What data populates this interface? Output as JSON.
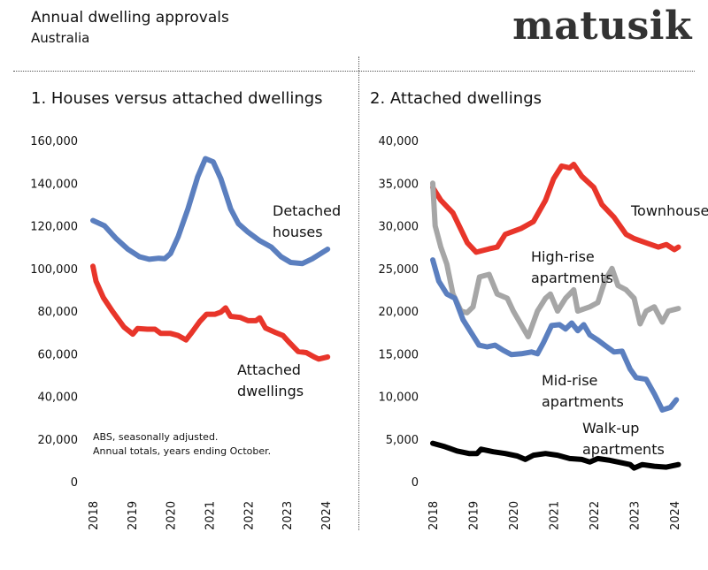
{
  "header": {
    "title": "Annual dwelling approvals",
    "subtitle": "Australia",
    "logo": "matusik"
  },
  "note": {
    "line1": "ABS, seasonally adjusted.",
    "line2": "Annual totals, years ending October."
  },
  "chart_data": [
    {
      "type": "line",
      "title": "1. Houses versus attached dwellings",
      "xlim": [
        2018,
        2024
      ],
      "ylim": [
        0,
        160000
      ],
      "x_ticks": [
        "2018",
        "2019",
        "2020",
        "2021",
        "2022",
        "2023",
        "2024"
      ],
      "y_ticks": [
        "0",
        "20,000",
        "40,000",
        "60,000",
        "80,000",
        "100,000",
        "120,000",
        "140,000",
        "160,000"
      ],
      "grid": false,
      "series": [
        {
          "name": "Detached houses",
          "label_lines": [
            "Detached",
            "houses"
          ],
          "color": "#5b7fbf",
          "x": [
            2018.0,
            2018.3,
            2018.6,
            2018.9,
            2019.2,
            2019.45,
            2019.7,
            2019.85,
            2020.0,
            2020.2,
            2020.45,
            2020.7,
            2020.9,
            2021.1,
            2021.3,
            2021.55,
            2021.75,
            2022.0,
            2022.3,
            2022.6,
            2022.85,
            2023.1,
            2023.4,
            2023.65,
            2024.05
          ],
          "y": [
            122500,
            120000,
            114000,
            109000,
            105500,
            104300,
            104800,
            104600,
            107000,
            115000,
            128000,
            143000,
            151500,
            150000,
            142000,
            128000,
            121000,
            117000,
            113000,
            110000,
            105500,
            102800,
            102300,
            104500,
            109000
          ]
        },
        {
          "name": "Attached dwellings",
          "label_lines": [
            "Attached",
            "dwellings"
          ],
          "color": "#e8352a",
          "x": [
            2018.0,
            2018.08,
            2018.27,
            2018.5,
            2018.8,
            2019.03,
            2019.15,
            2019.4,
            2019.6,
            2019.75,
            2020.0,
            2020.2,
            2020.4,
            2020.55,
            2020.75,
            2020.93,
            2021.15,
            2021.3,
            2021.42,
            2021.55,
            2021.8,
            2022.0,
            2022.2,
            2022.3,
            2022.45,
            2022.7,
            2022.9,
            2023.05,
            2023.29,
            2023.5,
            2023.7,
            2023.82,
            2024.05
          ],
          "y": [
            101000,
            94000,
            86300,
            80000,
            72500,
            69200,
            71800,
            71500,
            71500,
            69500,
            69500,
            68500,
            66500,
            70000,
            75000,
            78500,
            78500,
            79500,
            81500,
            77500,
            77000,
            75500,
            75500,
            76800,
            72000,
            70000,
            68500,
            65500,
            61000,
            60500,
            58500,
            57500,
            58500
          ]
        }
      ]
    },
    {
      "type": "line",
      "title": "2. Attached dwellings",
      "xlim": [
        2018,
        2024
      ],
      "ylim": [
        0,
        40000
      ],
      "x_ticks": [
        "2018",
        "2019",
        "2020",
        "2021",
        "2022",
        "2023",
        "2024"
      ],
      "y_ticks": [
        "0",
        "5,000",
        "10,000",
        "15,000",
        "20,000",
        "25,000",
        "30,000",
        "35,000",
        "40,000"
      ],
      "grid": false,
      "series": [
        {
          "name": "Townhouse",
          "label_lines": [
            "Townhouse"
          ],
          "color": "#e8352a",
          "x": [
            2018.0,
            2018.2,
            2018.5,
            2018.86,
            2019.08,
            2019.4,
            2019.6,
            2019.8,
            2020.2,
            2020.5,
            2020.8,
            2021.0,
            2021.2,
            2021.4,
            2021.5,
            2021.7,
            2022.0,
            2022.2,
            2022.5,
            2022.8,
            2023.0,
            2023.3,
            2023.6,
            2023.8,
            2024.0,
            2024.1
          ],
          "y": [
            34500,
            33000,
            31500,
            28000,
            26900,
            27300,
            27500,
            29000,
            29700,
            30500,
            33000,
            35500,
            37000,
            36800,
            37200,
            35800,
            34500,
            32500,
            31000,
            29000,
            28500,
            28000,
            27500,
            27800,
            27200,
            27500
          ]
        },
        {
          "name": "High-rise apartments",
          "label_lines": [
            "High-rise",
            "apartments"
          ],
          "color": "#a6a6a6",
          "x": [
            2018.0,
            2018.06,
            2018.2,
            2018.35,
            2018.5,
            2018.7,
            2018.85,
            2019.0,
            2019.16,
            2019.4,
            2019.6,
            2019.85,
            2020.0,
            2020.37,
            2020.6,
            2020.8,
            2020.92,
            2021.1,
            2021.3,
            2021.5,
            2021.6,
            2021.9,
            2022.1,
            2022.27,
            2022.45,
            2022.6,
            2022.8,
            2023.0,
            2023.15,
            2023.3,
            2023.5,
            2023.7,
            2023.85,
            2024.1
          ],
          "y": [
            35000,
            30000,
            27500,
            25500,
            22000,
            20000,
            19800,
            20500,
            24000,
            24300,
            22000,
            21500,
            20000,
            17000,
            20000,
            21500,
            22000,
            20000,
            21500,
            22500,
            20000,
            20500,
            21000,
            23500,
            25000,
            23000,
            22500,
            21500,
            18500,
            20000,
            20500,
            18700,
            20000,
            20300
          ]
        },
        {
          "name": "Mid-rise apartments",
          "label_lines": [
            "Mid-rise",
            "apartments"
          ],
          "color": "#5b7fbf",
          "x": [
            2018.0,
            2018.15,
            2018.35,
            2018.55,
            2018.75,
            2018.95,
            2019.15,
            2019.35,
            2019.55,
            2019.75,
            2019.95,
            2020.2,
            2020.45,
            2020.6,
            2020.75,
            2020.95,
            2021.15,
            2021.3,
            2021.45,
            2021.6,
            2021.75,
            2021.9,
            2022.1,
            2022.3,
            2022.5,
            2022.7,
            2022.9,
            2023.05,
            2023.3,
            2023.5,
            2023.7,
            2023.9,
            2024.05
          ],
          "y": [
            26000,
            23500,
            22000,
            21500,
            19000,
            17500,
            16000,
            15800,
            16000,
            15400,
            14900,
            15000,
            15200,
            15000,
            16300,
            18300,
            18400,
            17900,
            18600,
            17700,
            18400,
            17200,
            16600,
            15900,
            15200,
            15300,
            13200,
            12200,
            12000,
            10300,
            8400,
            8700,
            9600
          ]
        },
        {
          "name": "Walk-up apartments",
          "label_lines": [
            "Walk-up",
            "apartments"
          ],
          "color": "#000000",
          "x": [
            2018.0,
            2018.3,
            2018.6,
            2018.9,
            2019.1,
            2019.2,
            2019.5,
            2019.8,
            2020.1,
            2020.3,
            2020.5,
            2020.8,
            2021.1,
            2021.4,
            2021.7,
            2021.9,
            2022.1,
            2022.4,
            2022.6,
            2022.9,
            2023.0,
            2023.2,
            2023.5,
            2023.8,
            2024.1
          ],
          "y": [
            4500,
            4100,
            3600,
            3300,
            3300,
            3800,
            3500,
            3300,
            3000,
            2600,
            3100,
            3300,
            3100,
            2700,
            2600,
            2300,
            2700,
            2500,
            2300,
            2000,
            1600,
            2000,
            1800,
            1700,
            2000
          ]
        }
      ]
    }
  ]
}
